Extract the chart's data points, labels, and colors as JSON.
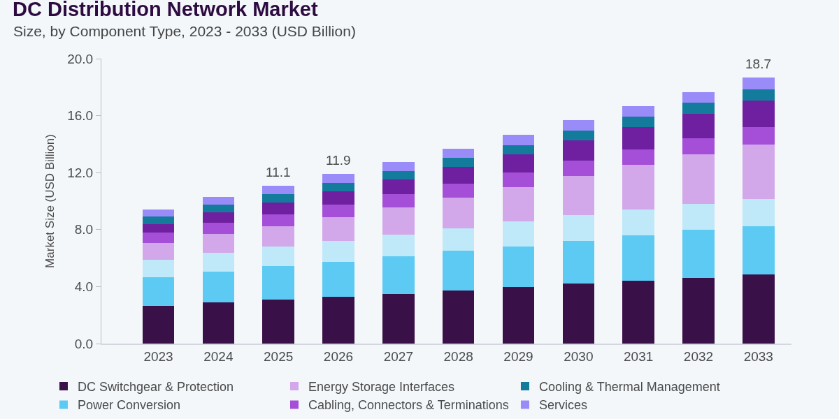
{
  "chart_data": {
    "type": "bar",
    "title": "DC Distribution Network Market",
    "subtitle": "Size, by Component Type, 2023 - 2033 (USD Billion)",
    "ylabel": "Market Size (USD Billion)",
    "categories": [
      "2023",
      "2024",
      "2025",
      "2026",
      "2027",
      "2028",
      "2029",
      "2030",
      "2031",
      "2032",
      "2033"
    ],
    "stacked": true,
    "ylim": [
      0,
      20
    ],
    "yticks": [
      {
        "value": 0,
        "label": "0.0"
      },
      {
        "value": 4,
        "label": "4.0"
      },
      {
        "value": 8,
        "label": "8.0"
      },
      {
        "value": 12,
        "label": "12.0"
      },
      {
        "value": 16,
        "label": "16.0"
      },
      {
        "value": 20,
        "label": "20.0"
      }
    ],
    "grid": false,
    "legend": "bottom",
    "totals": [
      null,
      null,
      "11.1",
      "11.9",
      null,
      null,
      null,
      null,
      null,
      null,
      "18.7"
    ],
    "series": [
      {
        "name": "DC Switchgear & Protection",
        "color": "#3a1048",
        "values": [
          2.63,
          2.87,
          3.08,
          3.27,
          3.49,
          3.71,
          3.97,
          4.21,
          4.41,
          4.62,
          4.84
        ]
      },
      {
        "name": "Power Conversion",
        "color": "#5ccaf3",
        "values": [
          2.02,
          2.2,
          2.34,
          2.47,
          2.63,
          2.79,
          2.85,
          3.01,
          3.19,
          3.35,
          3.4
        ]
      },
      {
        "color": "#bfe8f8",
        "values": [
          1.25,
          1.3,
          1.38,
          1.48,
          1.51,
          1.58,
          1.74,
          1.78,
          1.82,
          1.85,
          1.93
        ]
      },
      {
        "name": "Energy Storage Interfaces",
        "color": "#d3a8ea",
        "values": [
          1.14,
          1.33,
          1.44,
          1.66,
          1.92,
          2.18,
          2.42,
          2.76,
          3.11,
          3.45,
          3.82
        ]
      },
      {
        "name": "Cabling, Connectors & Terminations",
        "color": "#a54ed8",
        "values": [
          0.74,
          0.78,
          0.84,
          0.89,
          0.94,
          0.96,
          1.04,
          1.07,
          1.1,
          1.12,
          1.23
        ]
      },
      {
        "color": "#6f20a0",
        "values": [
          0.62,
          0.73,
          0.83,
          0.92,
          1.02,
          1.16,
          1.25,
          1.42,
          1.59,
          1.75,
          1.85
        ]
      },
      {
        "name": "Cooling & Thermal Management",
        "color": "#137b9c",
        "values": [
          0.54,
          0.56,
          0.58,
          0.58,
          0.62,
          0.67,
          0.67,
          0.68,
          0.73,
          0.78,
          0.76
        ]
      },
      {
        "name": "Services",
        "color": "#998cf9",
        "values": [
          0.48,
          0.54,
          0.61,
          0.63,
          0.62,
          0.64,
          0.71,
          0.74,
          0.74,
          0.75,
          0.87
        ]
      }
    ]
  }
}
